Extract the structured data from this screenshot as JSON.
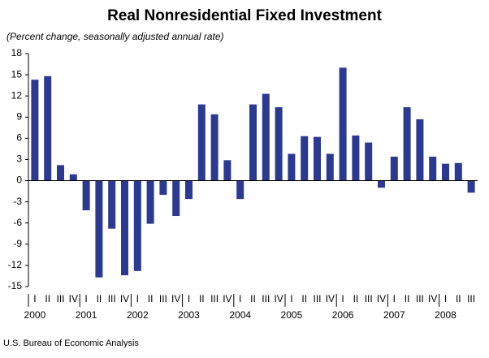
{
  "chart_data": {
    "type": "bar",
    "title": "Real Nonresidential Fixed Investment",
    "subtitle": "(Percent change, seasonally adjusted annual rate)",
    "source": "U.S. Bureau of Economic Analysis",
    "categories": [
      "I",
      "II",
      "III",
      "IV",
      "I",
      "II",
      "III",
      "IV",
      "I",
      "II",
      "III",
      "IV",
      "I",
      "II",
      "III",
      "IV",
      "I",
      "II",
      "III",
      "IV",
      "I",
      "II",
      "III",
      "IV",
      "I",
      "II",
      "III",
      "IV",
      "I",
      "II",
      "III",
      "IV",
      "I",
      "II",
      "III"
    ],
    "years": [
      "2000",
      "2001",
      "2002",
      "2003",
      "2004",
      "2005",
      "2006",
      "2007",
      "2008"
    ],
    "values": [
      14.3,
      14.8,
      2.2,
      0.9,
      -4.2,
      -13.7,
      -6.8,
      -13.4,
      -12.8,
      -6.1,
      -2.0,
      -5.0,
      -2.6,
      10.8,
      9.4,
      2.9,
      -2.6,
      10.8,
      12.3,
      10.4,
      3.8,
      6.3,
      6.2,
      3.8,
      16.0,
      6.4,
      5.4,
      -1.0,
      3.4,
      10.4,
      8.7,
      3.4,
      2.4,
      2.5,
      -1.7
    ],
    "color": "#2b3990",
    "ylim": [
      -15,
      18
    ],
    "yticks": [
      -15,
      -12,
      -9,
      -6,
      -3,
      0,
      3,
      6,
      9,
      12,
      15,
      18
    ]
  }
}
